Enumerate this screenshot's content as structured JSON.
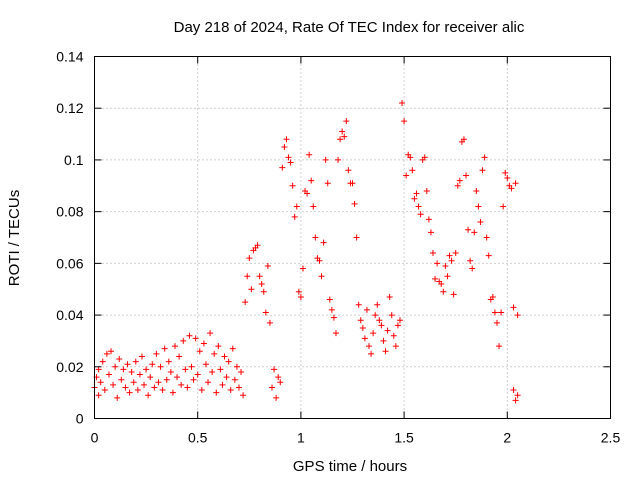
{
  "chart_data": {
    "type": "scatter",
    "title": "Day 218 of 2024, Rate Of TEC Index for receiver alic",
    "xlabel": "GPS time / hours",
    "ylabel": "ROTI / TECUs",
    "xlim": [
      0,
      2.5
    ],
    "ylim": [
      0,
      0.14
    ],
    "xticks": [
      0,
      0.5,
      1,
      1.5,
      2,
      2.5
    ],
    "xtick_labels": [
      "0",
      "0.5",
      "1",
      "1.5",
      "2",
      "2.5"
    ],
    "yticks": [
      0,
      0.02,
      0.04,
      0.06,
      0.08,
      0.1,
      0.12,
      0.14
    ],
    "ytick_labels": [
      "0",
      "0.02",
      "0.04",
      "0.06",
      "0.08",
      "0.1",
      "0.12",
      "0.14"
    ],
    "grid": true,
    "marker": "+",
    "marker_color": "#ff0000",
    "series": [
      {
        "name": "ROTI",
        "points": [
          [
            0.0,
            0.012
          ],
          [
            0.01,
            0.016
          ],
          [
            0.02,
            0.009
          ],
          [
            0.02,
            0.019
          ],
          [
            0.03,
            0.014
          ],
          [
            0.04,
            0.022
          ],
          [
            0.05,
            0.011
          ],
          [
            0.06,
            0.025
          ],
          [
            0.07,
            0.017
          ],
          [
            0.08,
            0.026
          ],
          [
            0.09,
            0.013
          ],
          [
            0.1,
            0.02
          ],
          [
            0.11,
            0.008
          ],
          [
            0.12,
            0.023
          ],
          [
            0.13,
            0.015
          ],
          [
            0.14,
            0.019
          ],
          [
            0.15,
            0.012
          ],
          [
            0.16,
            0.021
          ],
          [
            0.17,
            0.01
          ],
          [
            0.18,
            0.018
          ],
          [
            0.19,
            0.014
          ],
          [
            0.2,
            0.022
          ],
          [
            0.21,
            0.011
          ],
          [
            0.22,
            0.017
          ],
          [
            0.23,
            0.024
          ],
          [
            0.24,
            0.013
          ],
          [
            0.25,
            0.019
          ],
          [
            0.26,
            0.009
          ],
          [
            0.27,
            0.016
          ],
          [
            0.28,
            0.021
          ],
          [
            0.29,
            0.012
          ],
          [
            0.3,
            0.025
          ],
          [
            0.31,
            0.014
          ],
          [
            0.32,
            0.02
          ],
          [
            0.33,
            0.011
          ],
          [
            0.34,
            0.027
          ],
          [
            0.35,
            0.015
          ],
          [
            0.36,
            0.022
          ],
          [
            0.37,
            0.018
          ],
          [
            0.38,
            0.01
          ],
          [
            0.39,
            0.028
          ],
          [
            0.4,
            0.016
          ],
          [
            0.41,
            0.024
          ],
          [
            0.42,
            0.013
          ],
          [
            0.43,
            0.03
          ],
          [
            0.44,
            0.019
          ],
          [
            0.45,
            0.012
          ],
          [
            0.46,
            0.032
          ],
          [
            0.47,
            0.02
          ],
          [
            0.48,
            0.015
          ],
          [
            0.49,
            0.031
          ],
          [
            0.5,
            0.017
          ],
          [
            0.51,
            0.026
          ],
          [
            0.52,
            0.011
          ],
          [
            0.53,
            0.029
          ],
          [
            0.54,
            0.021
          ],
          [
            0.55,
            0.014
          ],
          [
            0.56,
            0.033
          ],
          [
            0.57,
            0.018
          ],
          [
            0.58,
            0.025
          ],
          [
            0.59,
            0.01
          ],
          [
            0.6,
            0.028
          ],
          [
            0.61,
            0.019
          ],
          [
            0.62,
            0.013
          ],
          [
            0.63,
            0.024
          ],
          [
            0.64,
            0.016
          ],
          [
            0.65,
            0.022
          ],
          [
            0.66,
            0.011
          ],
          [
            0.67,
            0.027
          ],
          [
            0.68,
            0.015
          ],
          [
            0.69,
            0.02
          ],
          [
            0.7,
            0.012
          ],
          [
            0.71,
            0.018
          ],
          [
            0.72,
            0.009
          ],
          [
            0.73,
            0.045
          ],
          [
            0.74,
            0.055
          ],
          [
            0.75,
            0.062
          ],
          [
            0.76,
            0.05
          ],
          [
            0.77,
            0.065
          ],
          [
            0.78,
            0.066
          ],
          [
            0.79,
            0.067
          ],
          [
            0.8,
            0.055
          ],
          [
            0.81,
            0.052
          ],
          [
            0.82,
            0.049
          ],
          [
            0.83,
            0.041
          ],
          [
            0.84,
            0.059
          ],
          [
            0.85,
            0.037
          ],
          [
            0.86,
            0.012
          ],
          [
            0.87,
            0.019
          ],
          [
            0.88,
            0.008
          ],
          [
            0.89,
            0.016
          ],
          [
            0.9,
            0.014
          ],
          [
            0.91,
            0.097
          ],
          [
            0.92,
            0.105
          ],
          [
            0.93,
            0.108
          ],
          [
            0.94,
            0.101
          ],
          [
            0.95,
            0.099
          ],
          [
            0.96,
            0.09
          ],
          [
            0.97,
            0.078
          ],
          [
            0.98,
            0.082
          ],
          [
            0.99,
            0.049
          ],
          [
            1.0,
            0.047
          ],
          [
            1.01,
            0.058
          ],
          [
            1.02,
            0.088
          ],
          [
            1.03,
            0.087
          ],
          [
            1.04,
            0.102
          ],
          [
            1.05,
            0.092
          ],
          [
            1.06,
            0.082
          ],
          [
            1.07,
            0.07
          ],
          [
            1.08,
            0.062
          ],
          [
            1.09,
            0.061
          ],
          [
            1.1,
            0.055
          ],
          [
            1.11,
            0.068
          ],
          [
            1.12,
            0.1
          ],
          [
            1.13,
            0.091
          ],
          [
            1.14,
            0.046
          ],
          [
            1.15,
            0.042
          ],
          [
            1.16,
            0.039
          ],
          [
            1.17,
            0.033
          ],
          [
            1.18,
            0.1
          ],
          [
            1.19,
            0.108
          ],
          [
            1.2,
            0.111
          ],
          [
            1.21,
            0.109
          ],
          [
            1.22,
            0.115
          ],
          [
            1.23,
            0.096
          ],
          [
            1.24,
            0.091
          ],
          [
            1.25,
            0.091
          ],
          [
            1.26,
            0.083
          ],
          [
            1.27,
            0.07
          ],
          [
            1.28,
            0.044
          ],
          [
            1.29,
            0.038
          ],
          [
            1.3,
            0.035
          ],
          [
            1.31,
            0.031
          ],
          [
            1.32,
            0.042
          ],
          [
            1.33,
            0.028
          ],
          [
            1.34,
            0.025
          ],
          [
            1.35,
            0.033
          ],
          [
            1.36,
            0.04
          ],
          [
            1.37,
            0.044
          ],
          [
            1.38,
            0.038
          ],
          [
            1.39,
            0.036
          ],
          [
            1.4,
            0.03
          ],
          [
            1.41,
            0.026
          ],
          [
            1.42,
            0.034
          ],
          [
            1.43,
            0.047
          ],
          [
            1.44,
            0.04
          ],
          [
            1.45,
            0.032
          ],
          [
            1.46,
            0.028
          ],
          [
            1.47,
            0.036
          ],
          [
            1.48,
            0.038
          ],
          [
            1.49,
            0.122
          ],
          [
            1.5,
            0.115
          ],
          [
            1.51,
            0.094
          ],
          [
            1.52,
            0.102
          ],
          [
            1.53,
            0.101
          ],
          [
            1.54,
            0.096
          ],
          [
            1.55,
            0.085
          ],
          [
            1.56,
            0.087
          ],
          [
            1.57,
            0.082
          ],
          [
            1.58,
            0.079
          ],
          [
            1.59,
            0.1
          ],
          [
            1.6,
            0.101
          ],
          [
            1.61,
            0.088
          ],
          [
            1.62,
            0.077
          ],
          [
            1.63,
            0.072
          ],
          [
            1.64,
            0.064
          ],
          [
            1.65,
            0.054
          ],
          [
            1.66,
            0.06
          ],
          [
            1.67,
            0.053
          ],
          [
            1.68,
            0.052
          ],
          [
            1.69,
            0.049
          ],
          [
            1.7,
            0.059
          ],
          [
            1.71,
            0.055
          ],
          [
            1.72,
            0.063
          ],
          [
            1.73,
            0.061
          ],
          [
            1.74,
            0.048
          ],
          [
            1.75,
            0.064
          ],
          [
            1.76,
            0.09
          ],
          [
            1.77,
            0.092
          ],
          [
            1.78,
            0.107
          ],
          [
            1.79,
            0.108
          ],
          [
            1.8,
            0.094
          ],
          [
            1.81,
            0.073
          ],
          [
            1.82,
            0.061
          ],
          [
            1.83,
            0.058
          ],
          [
            1.84,
            0.072
          ],
          [
            1.85,
            0.088
          ],
          [
            1.86,
            0.082
          ],
          [
            1.87,
            0.076
          ],
          [
            1.88,
            0.096
          ],
          [
            1.89,
            0.101
          ],
          [
            1.9,
            0.07
          ],
          [
            1.91,
            0.063
          ],
          [
            1.92,
            0.046
          ],
          [
            1.93,
            0.047
          ],
          [
            1.94,
            0.041
          ],
          [
            1.95,
            0.037
          ],
          [
            1.96,
            0.028
          ],
          [
            1.97,
            0.041
          ],
          [
            1.98,
            0.082
          ],
          [
            1.99,
            0.095
          ],
          [
            2.0,
            0.093
          ],
          [
            2.01,
            0.09
          ],
          [
            2.02,
            0.089
          ],
          [
            2.03,
            0.043
          ],
          [
            2.04,
            0.091
          ],
          [
            2.05,
            0.04
          ],
          [
            2.05,
            0.009
          ],
          [
            2.04,
            0.007
          ],
          [
            2.03,
            0.011
          ]
        ]
      }
    ]
  }
}
